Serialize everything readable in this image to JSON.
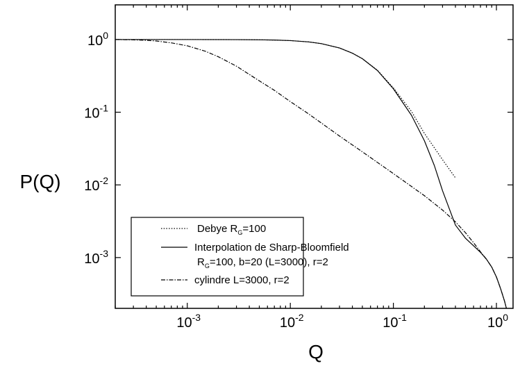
{
  "chart_data": {
    "type": "line",
    "xlabel": "Q",
    "ylabel": "P(Q)",
    "xscale": "log",
    "yscale": "log",
    "xlim": [
      0.0002,
      1.45
    ],
    "ylim": [
      0.0002,
      3.0
    ],
    "grid": false,
    "legend_placement": "lower-left",
    "x_ticks": [
      {
        "value": 0.001,
        "base": "10",
        "exp": "-3"
      },
      {
        "value": 0.01,
        "base": "10",
        "exp": "-2"
      },
      {
        "value": 0.1,
        "base": "10",
        "exp": "-1"
      },
      {
        "value": 1,
        "base": "10",
        "exp": "0"
      }
    ],
    "y_ticks": [
      {
        "value": 1,
        "base": "10",
        "exp": "0"
      },
      {
        "value": 0.1,
        "base": "10",
        "exp": "-1"
      },
      {
        "value": 0.01,
        "base": "10",
        "exp": "-2"
      },
      {
        "value": 0.001,
        "base": "10",
        "exp": "-3"
      }
    ],
    "series": [
      {
        "legend_main": "Debye R",
        "legend_sub": "G",
        "legend_after": "=100",
        "style": "dotted",
        "color": "#000000",
        "points": [
          [
            0.0002,
            1.0
          ],
          [
            0.0005,
            0.9999
          ],
          [
            0.001,
            0.9997
          ],
          [
            0.002,
            0.9987
          ],
          [
            0.003,
            0.997
          ],
          [
            0.005,
            0.9917
          ],
          [
            0.007,
            0.984
          ],
          [
            0.01,
            0.9671
          ],
          [
            0.015,
            0.928
          ],
          [
            0.02,
            0.878
          ],
          [
            0.03,
            0.765
          ],
          [
            0.04,
            0.649
          ],
          [
            0.05,
            0.545
          ],
          [
            0.07,
            0.378
          ],
          [
            0.1,
            0.2163
          ],
          [
            0.15,
            0.1022
          ],
          [
            0.2,
            0.0512
          ],
          [
            0.3,
            0.0222
          ],
          [
            0.4,
            0.0125
          ]
        ]
      },
      {
        "legend_main": "Interpolation de Sharp-Bloomfield",
        "legend_line2_main": "R",
        "legend_line2_sub": "G",
        "legend_line2_after": "=100, b=20 (L=3000), r=2",
        "style": "solid",
        "color": "#000000",
        "points": [
          [
            0.0002,
            1.0
          ],
          [
            0.001,
            0.9997
          ],
          [
            0.003,
            0.997
          ],
          [
            0.005,
            0.9917
          ],
          [
            0.007,
            0.984
          ],
          [
            0.01,
            0.9671
          ],
          [
            0.015,
            0.928
          ],
          [
            0.02,
            0.878
          ],
          [
            0.03,
            0.765
          ],
          [
            0.04,
            0.649
          ],
          [
            0.05,
            0.545
          ],
          [
            0.07,
            0.375
          ],
          [
            0.1,
            0.21
          ],
          [
            0.15,
            0.0905
          ],
          [
            0.2,
            0.0405
          ],
          [
            0.25,
            0.0184
          ],
          [
            0.3,
            0.0083
          ],
          [
            0.4,
            0.0028
          ],
          [
            0.5,
            0.00185
          ],
          [
            0.6,
            0.00145
          ],
          [
            0.7,
            0.00118
          ],
          [
            0.8,
            0.00095
          ],
          [
            0.9,
            0.00074
          ],
          [
            1.0,
            0.00054
          ],
          [
            1.1,
            0.00037
          ],
          [
            1.2,
            0.00025
          ],
          [
            1.25,
            0.0002
          ]
        ]
      },
      {
        "legend_main": "cylindre L=3000, r=2",
        "style": "dashdot",
        "color": "#000000",
        "points": [
          [
            0.0002,
            1.0
          ],
          [
            0.0003,
            0.99
          ],
          [
            0.0004,
            0.975
          ],
          [
            0.0005,
            0.955
          ],
          [
            0.0007,
            0.9
          ],
          [
            0.001,
            0.82
          ],
          [
            0.0015,
            0.69
          ],
          [
            0.002,
            0.58
          ],
          [
            0.003,
            0.43
          ],
          [
            0.005,
            0.27
          ],
          [
            0.007,
            0.2
          ],
          [
            0.01,
            0.14
          ],
          [
            0.015,
            0.095
          ],
          [
            0.02,
            0.071
          ],
          [
            0.03,
            0.047
          ],
          [
            0.05,
            0.0285
          ],
          [
            0.07,
            0.0204
          ],
          [
            0.1,
            0.0143
          ],
          [
            0.15,
            0.0095
          ],
          [
            0.2,
            0.0071
          ],
          [
            0.3,
            0.0045
          ],
          [
            0.4,
            0.0031
          ],
          [
            0.5,
            0.0022
          ],
          [
            0.6,
            0.0016
          ],
          [
            0.7,
            0.0012
          ],
          [
            0.8,
            0.00095
          ],
          [
            0.9,
            0.00074
          ],
          [
            1.0,
            0.00054
          ],
          [
            1.1,
            0.00037
          ],
          [
            1.2,
            0.00025
          ],
          [
            1.25,
            0.0002
          ]
        ]
      }
    ]
  }
}
